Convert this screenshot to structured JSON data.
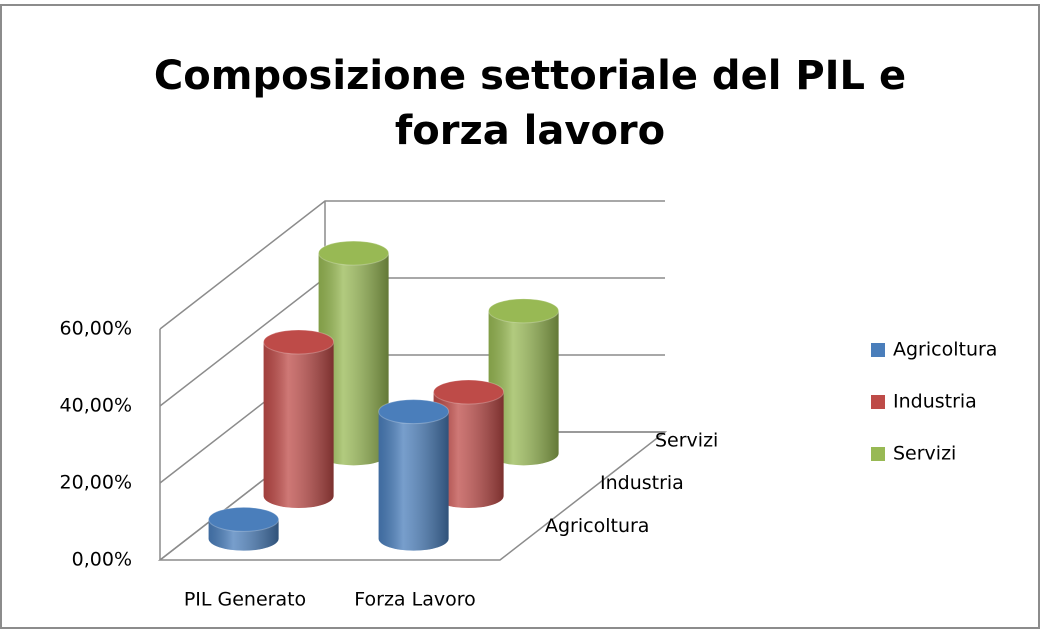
{
  "chart_data": {
    "type": "bar3d",
    "title": [
      "Composizione settoriale del  PIL  e",
      "forza lavoro"
    ],
    "categories": [
      "PIL Generato",
      "Forza Lavoro"
    ],
    "series": [
      {
        "name": "Agricoltura",
        "color": "#4a7ebb",
        "values": [
          5,
          33
        ]
      },
      {
        "name": "Industria",
        "color": "#be4b48",
        "values": [
          40,
          27
        ]
      },
      {
        "name": "Servizi",
        "color": "#98b954",
        "values": [
          52,
          37
        ]
      }
    ],
    "ylim": [
      0,
      60
    ],
    "yticks": [
      {
        "value": 0,
        "label": "0,00%"
      },
      {
        "value": 20,
        "label": "20,00%"
      },
      {
        "value": 40,
        "label": "40,00%"
      },
      {
        "value": 60,
        "label": "60,00%"
      }
    ],
    "grid": true,
    "legend": "right"
  }
}
